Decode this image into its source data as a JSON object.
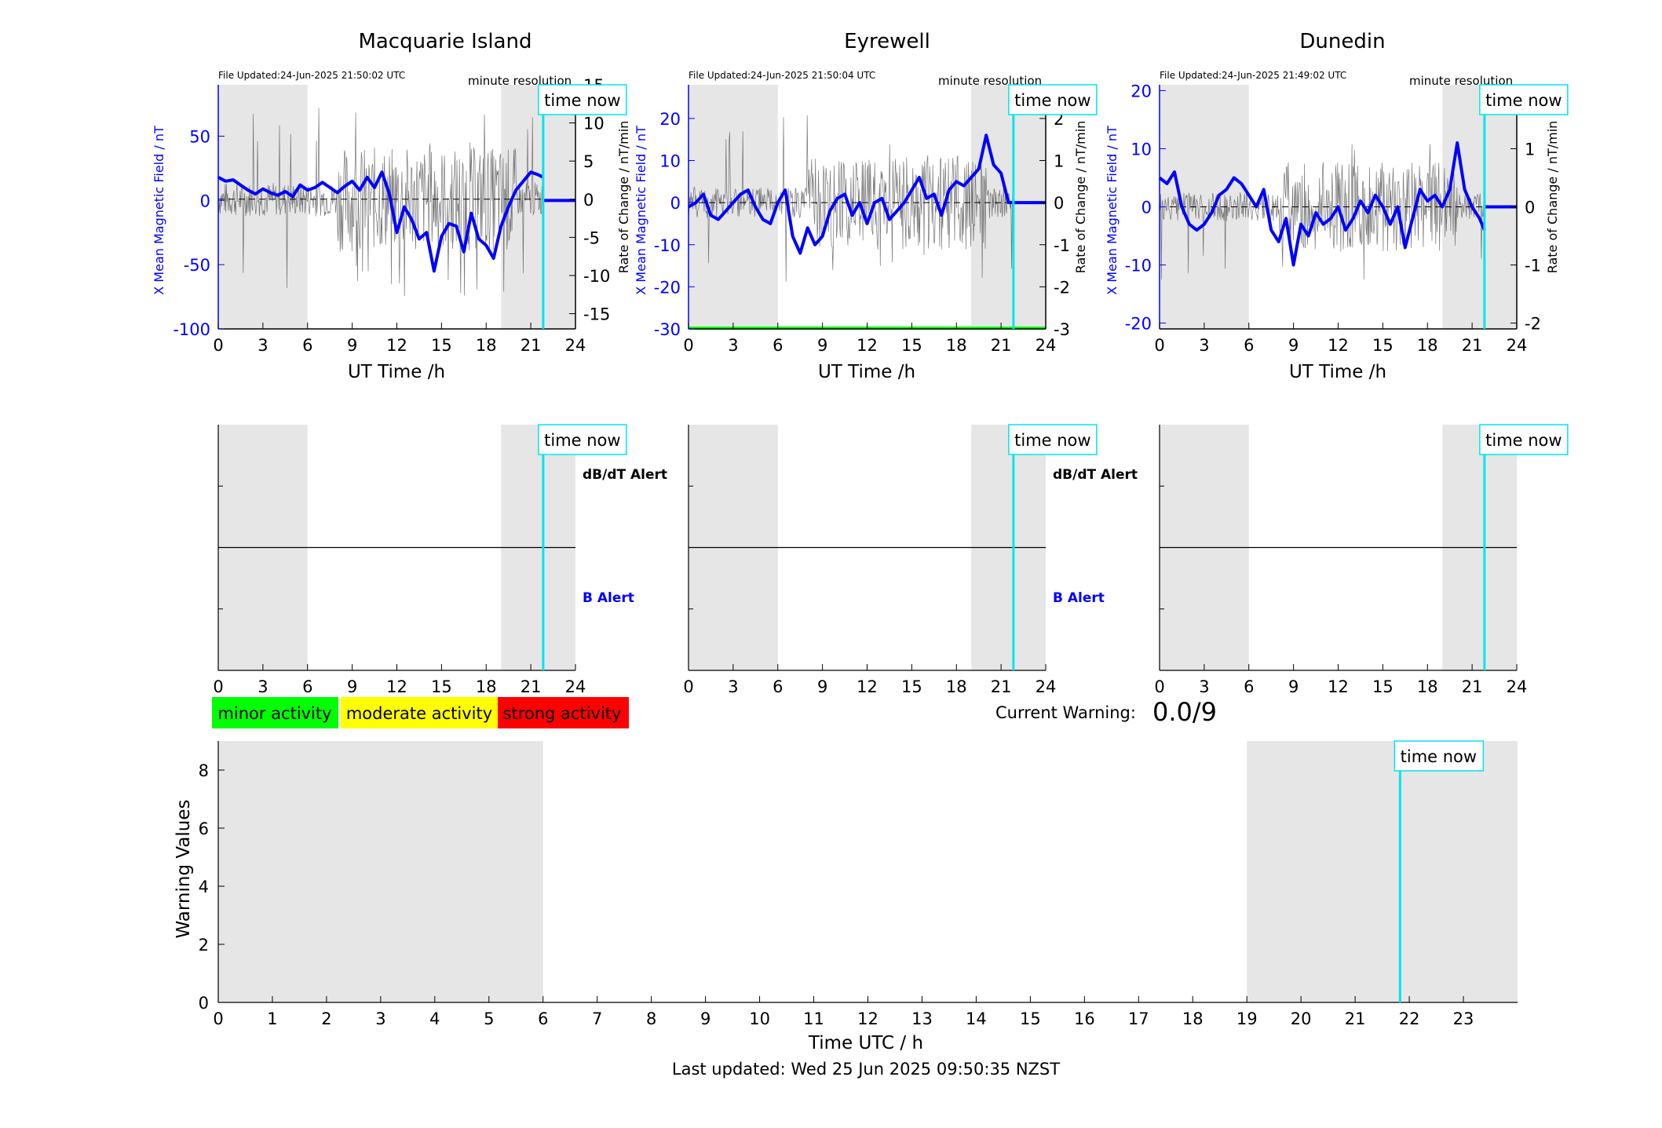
{
  "common": {
    "time_now_label": "time now",
    "time_now_hour": 21.83,
    "night_shading": [
      [
        0,
        6
      ],
      [
        19,
        24
      ]
    ],
    "x_tick_labels": [
      "0",
      "3",
      "6",
      "9",
      "12",
      "15",
      "18",
      "21",
      "24"
    ],
    "x_label": "UT Time /h",
    "left_axis_label": "X Mean Magnetic Field / nT",
    "right_axis_label": "Rate of Change / nT/min",
    "resolution_label": "minute resolution",
    "colors": {
      "mean_field": "#0000ff",
      "rate": "#000000",
      "time_now": "#00e5ee",
      "shading": "#e6e6e6",
      "minor": "#00ff00",
      "moderate": "#ffff00",
      "strong": "#ff0000"
    }
  },
  "alert_labels": {
    "dbdt": "dB/dT Alert",
    "b": "B Alert"
  },
  "legend": {
    "minor": "minor activity",
    "moderate": "moderate activity",
    "strong": "strong activity"
  },
  "current_warning": {
    "label": "Current Warning:",
    "value": "0.0/9"
  },
  "chart_data": [
    {
      "type": "line",
      "title": "Macquarie Island",
      "file_updated": "File Updated:24-Jun-2025 21:50:02 UTC",
      "xlabel": "UT Time /h",
      "ylabel": "X Mean Magnetic Field / nT",
      "y2label": "Rate of Change / nT/min",
      "xlim": [
        0,
        24
      ],
      "ylim": [
        -100,
        90
      ],
      "y2lim": [
        -17,
        15
      ],
      "left_ticks": [
        "-100",
        "-50",
        "0",
        "50"
      ],
      "right_ticks": [
        "-15",
        "-10",
        "-5",
        "0",
        "5",
        "10",
        "15"
      ],
      "series": [
        {
          "x": [
            0,
            0.5,
            1,
            1.5,
            2,
            2.5,
            3,
            3.5,
            4,
            4.5,
            5,
            5.5,
            6,
            6.5,
            7,
            7.5,
            8,
            8.5,
            9,
            9.5,
            10,
            10.5,
            11,
            11.5,
            12,
            12.5,
            13,
            13.5,
            14,
            14.5,
            15,
            15.5,
            16,
            16.5,
            17,
            17.5,
            18,
            18.5,
            19,
            19.5,
            20,
            20.5,
            21,
            21.5,
            21.83
          ],
          "y": [
            18,
            15,
            16,
            12,
            8,
            5,
            9,
            6,
            4,
            7,
            3,
            12,
            8,
            10,
            14,
            10,
            6,
            11,
            15,
            8,
            18,
            10,
            22,
            5,
            -25,
            -5,
            -15,
            -30,
            -25,
            -55,
            -28,
            -18,
            -20,
            -40,
            -10,
            -30,
            -35,
            -45,
            -20,
            -5,
            8,
            15,
            22,
            20,
            18
          ]
        }
      ],
      "rate_range_nT_per_min": [
        -13,
        12
      ]
    },
    {
      "type": "line",
      "title": "Eyrewell",
      "file_updated": "File Updated:24-Jun-2025 21:50:04 UTC",
      "xlabel": "UT Time /h",
      "ylabel": "X Mean Magnetic Field / nT",
      "y2label": "Rate of Change / nT/min",
      "xlim": [
        0,
        24
      ],
      "ylim": [
        -30,
        28
      ],
      "y2lim": [
        -3,
        2.8
      ],
      "left_ticks": [
        "-30",
        "-20",
        "-10",
        "0",
        "10",
        "20"
      ],
      "right_ticks": [
        "-3",
        "-2",
        "-1",
        "0",
        "1",
        "2"
      ],
      "series": [
        {
          "x": [
            0,
            0.5,
            1,
            1.5,
            2,
            2.5,
            3,
            3.5,
            4,
            4.5,
            5,
            5.5,
            6,
            6.5,
            7,
            7.5,
            8,
            8.5,
            9,
            9.5,
            10,
            10.5,
            11,
            11.5,
            12,
            12.5,
            13,
            13.5,
            14,
            14.5,
            15,
            15.5,
            16,
            16.5,
            17,
            17.5,
            18,
            18.5,
            19,
            19.5,
            20,
            20.5,
            21,
            21.5,
            21.83
          ],
          "y": [
            -1,
            0,
            2,
            -3,
            -4,
            -2,
            0,
            2,
            3,
            -1,
            -4,
            -5,
            0,
            3,
            -8,
            -12,
            -6,
            -10,
            -8,
            -2,
            1,
            2,
            -3,
            0,
            -5,
            0,
            1,
            -4,
            -2,
            0,
            3,
            6,
            1,
            2,
            -3,
            3,
            5,
            4,
            6,
            8,
            16,
            9,
            7,
            0,
            0
          ]
        }
      ],
      "rate_range_nT_per_min": [
        -2,
        2.1
      ]
    },
    {
      "type": "line",
      "title": "Dunedin",
      "file_updated": "File Updated:24-Jun-2025 21:49:02 UTC",
      "xlabel": "UT Time /h",
      "ylabel": "X Mean Magnetic Field / nT",
      "y2label": "Rate of Change / nT/min",
      "xlim": [
        0,
        24
      ],
      "ylim": [
        -21,
        21
      ],
      "y2lim": [
        -2.1,
        2.1
      ],
      "left_ticks": [
        "-20",
        "-10",
        "0",
        "10",
        "20"
      ],
      "right_ticks": [
        "-2",
        "-1",
        "0",
        "1",
        "2"
      ],
      "series": [
        {
          "x": [
            0,
            0.5,
            1,
            1.5,
            2,
            2.5,
            3,
            3.5,
            4,
            4.5,
            5,
            5.5,
            6,
            6.5,
            7,
            7.5,
            8,
            8.5,
            9,
            9.5,
            10,
            10.5,
            11,
            11.5,
            12,
            12.5,
            13,
            13.5,
            14,
            14.5,
            15,
            15.5,
            16,
            16.5,
            17,
            17.5,
            18,
            18.5,
            19,
            19.5,
            20,
            20.5,
            21,
            21.5,
            21.83
          ],
          "y": [
            5,
            4,
            6,
            0,
            -3,
            -4,
            -3,
            -1,
            2,
            3,
            5,
            4,
            2,
            0,
            3,
            -4,
            -6,
            -2,
            -10,
            -3,
            -5,
            -1,
            -3,
            -2,
            0,
            -4,
            -2,
            1,
            -1,
            2,
            0,
            -3,
            0,
            -7,
            -2,
            3,
            1,
            2,
            0,
            3,
            11,
            3,
            0,
            -2,
            -4
          ]
        }
      ],
      "rate_range_nT_per_min": [
        -1.3,
        1.5
      ]
    }
  ],
  "warning_chart": {
    "type": "bar",
    "xlabel": "Time UTC / h",
    "ylabel": "Warning Values",
    "xlim": [
      0,
      24
    ],
    "ylim": [
      0,
      9
    ],
    "x_tick_labels": [
      "0",
      "1",
      "2",
      "3",
      "4",
      "5",
      "6",
      "7",
      "8",
      "9",
      "10",
      "11",
      "12",
      "13",
      "14",
      "15",
      "16",
      "17",
      "18",
      "19",
      "20",
      "21",
      "22",
      "23"
    ],
    "y_tick_labels": [
      "0",
      "2",
      "4",
      "6",
      "8"
    ],
    "values": [],
    "night_shading": [
      [
        0,
        6
      ],
      [
        19,
        24
      ]
    ],
    "time_now_hour": 21.83
  },
  "footer": "Last updated: Wed 25 Jun 2025 09:50:35 NZST"
}
